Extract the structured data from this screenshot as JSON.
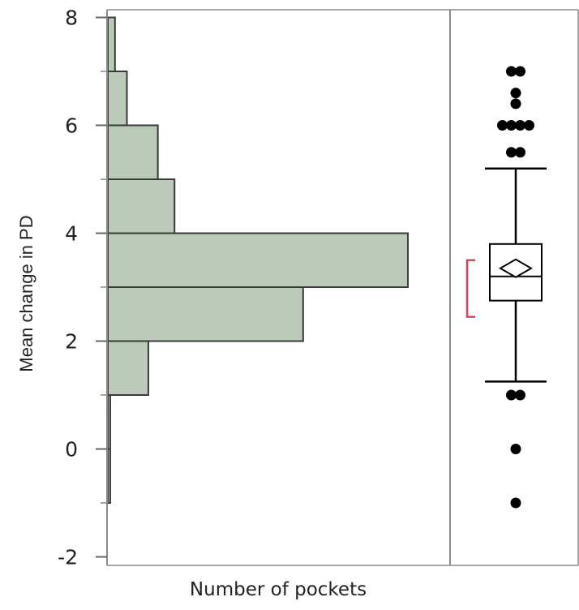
{
  "chart_data": {
    "type": "bar",
    "orientation": "horizontal-histogram",
    "title": "",
    "xlabel": "Number of pockets",
    "ylabel": "Mean change in PD",
    "ylim": [
      -2.2,
      8.2
    ],
    "yticks": [
      -2,
      0,
      2,
      4,
      6,
      8
    ],
    "ytick_labels": [
      "-2",
      "0",
      "2",
      "4",
      "6",
      "8"
    ],
    "grid": false,
    "colors": {
      "bar_fill": "#bccbb9",
      "bar_stroke": "#3a3a3a",
      "box_stroke": "#000000",
      "ci_bracket": "#d6475a",
      "outlier": "#000000"
    },
    "histogram": {
      "bins": [
        {
          "range": [
            -1,
            0
          ],
          "count": 1
        },
        {
          "range": [
            0,
            1
          ],
          "count": 1
        },
        {
          "range": [
            1,
            2
          ],
          "count": 17
        },
        {
          "range": [
            2,
            3
          ],
          "count": 82
        },
        {
          "range": [
            3,
            4
          ],
          "count": 126
        },
        {
          "range": [
            4,
            5
          ],
          "count": 28
        },
        {
          "range": [
            5,
            6
          ],
          "count": 21
        },
        {
          "range": [
            6,
            7
          ],
          "count": 8
        },
        {
          "range": [
            7,
            8
          ],
          "count": 3
        }
      ],
      "xlim": [
        0,
        142
      ]
    },
    "boxplot": {
      "q1": 2.75,
      "median": 3.2,
      "q3": 3.8,
      "mean": 3.35,
      "whisker_low": 1.25,
      "whisker_high": 5.2,
      "ci_bracket": [
        2.45,
        3.5
      ],
      "outliers": [
        7.0,
        7.0,
        6.6,
        6.4,
        6.0,
        6.0,
        6.0,
        6.0,
        5.5,
        5.5,
        1.0,
        1.0,
        0.0,
        -1.0
      ]
    }
  }
}
